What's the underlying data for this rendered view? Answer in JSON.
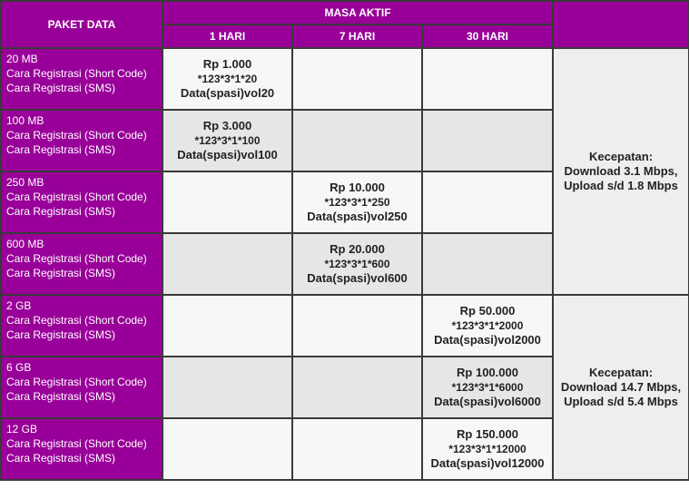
{
  "header": {
    "paket_data": "PAKET DATA",
    "masa_aktif": "MASA AKTIF",
    "durations": [
      "1 HARI",
      "7 HARI",
      "30 HARI"
    ]
  },
  "colors": {
    "header_bg": "#990099",
    "row_light": "#f7f7f7",
    "row_dark": "#e6e6e6"
  },
  "rows": [
    {
      "size": "20 MB",
      "line1": "Cara Registrasi (Short Code)",
      "line2": "Cara Registrasi (SMS)",
      "col": 0,
      "price": "Rp 1.000",
      "code": "*123*3*1*20",
      "sms": "Data(spasi)vol20"
    },
    {
      "size": "100 MB",
      "line1": "Cara Registrasi (Short Code)",
      "line2": "Cara Registrasi (SMS)",
      "col": 0,
      "price": "Rp 3.000",
      "code": "*123*3*1*100",
      "sms": "Data(spasi)vol100"
    },
    {
      "size": "250 MB",
      "line1": "Cara Registrasi (Short Code)",
      "line2": "Cara Registrasi (SMS)",
      "col": 1,
      "price": "Rp 10.000",
      "code": "*123*3*1*250",
      "sms": "Data(spasi)vol250"
    },
    {
      "size": "600 MB",
      "line1": "Cara Registrasi (Short Code)",
      "line2": "Cara Registrasi (SMS)",
      "col": 1,
      "price": "Rp 20.000",
      "code": "*123*3*1*600",
      "sms": "Data(spasi)vol600"
    },
    {
      "size": "2 GB",
      "line1": "Cara Registrasi (Short Code)",
      "line2": "Cara Registrasi (SMS)",
      "col": 2,
      "price": "Rp 50.000",
      "code": "*123*3*1*2000",
      "sms": "Data(spasi)vol2000"
    },
    {
      "size": "6 GB",
      "line1": "Cara Registrasi (Short Code)",
      "line2": "Cara Registrasi (SMS)",
      "col": 2,
      "price": "Rp 100.000",
      "code": "*123*3*1*6000",
      "sms": "Data(spasi)vol6000"
    },
    {
      "size": "12 GB",
      "line1": "Cara Registrasi (Short Code)",
      "line2": "Cara Registrasi (SMS)",
      "col": 2,
      "price": "Rp 150.000",
      "code": "*123*3*1*12000",
      "sms": "Data(spasi)vol12000"
    }
  ],
  "speeds": [
    {
      "label": "Kecepatan:",
      "download": "Download 3.1 Mbps,",
      "upload": "Upload s/d 1.8 Mbps"
    },
    {
      "label": "Kecepatan:",
      "download": "Download 14.7 Mbps,",
      "upload": "Upload s/d 5.4 Mbps"
    }
  ]
}
